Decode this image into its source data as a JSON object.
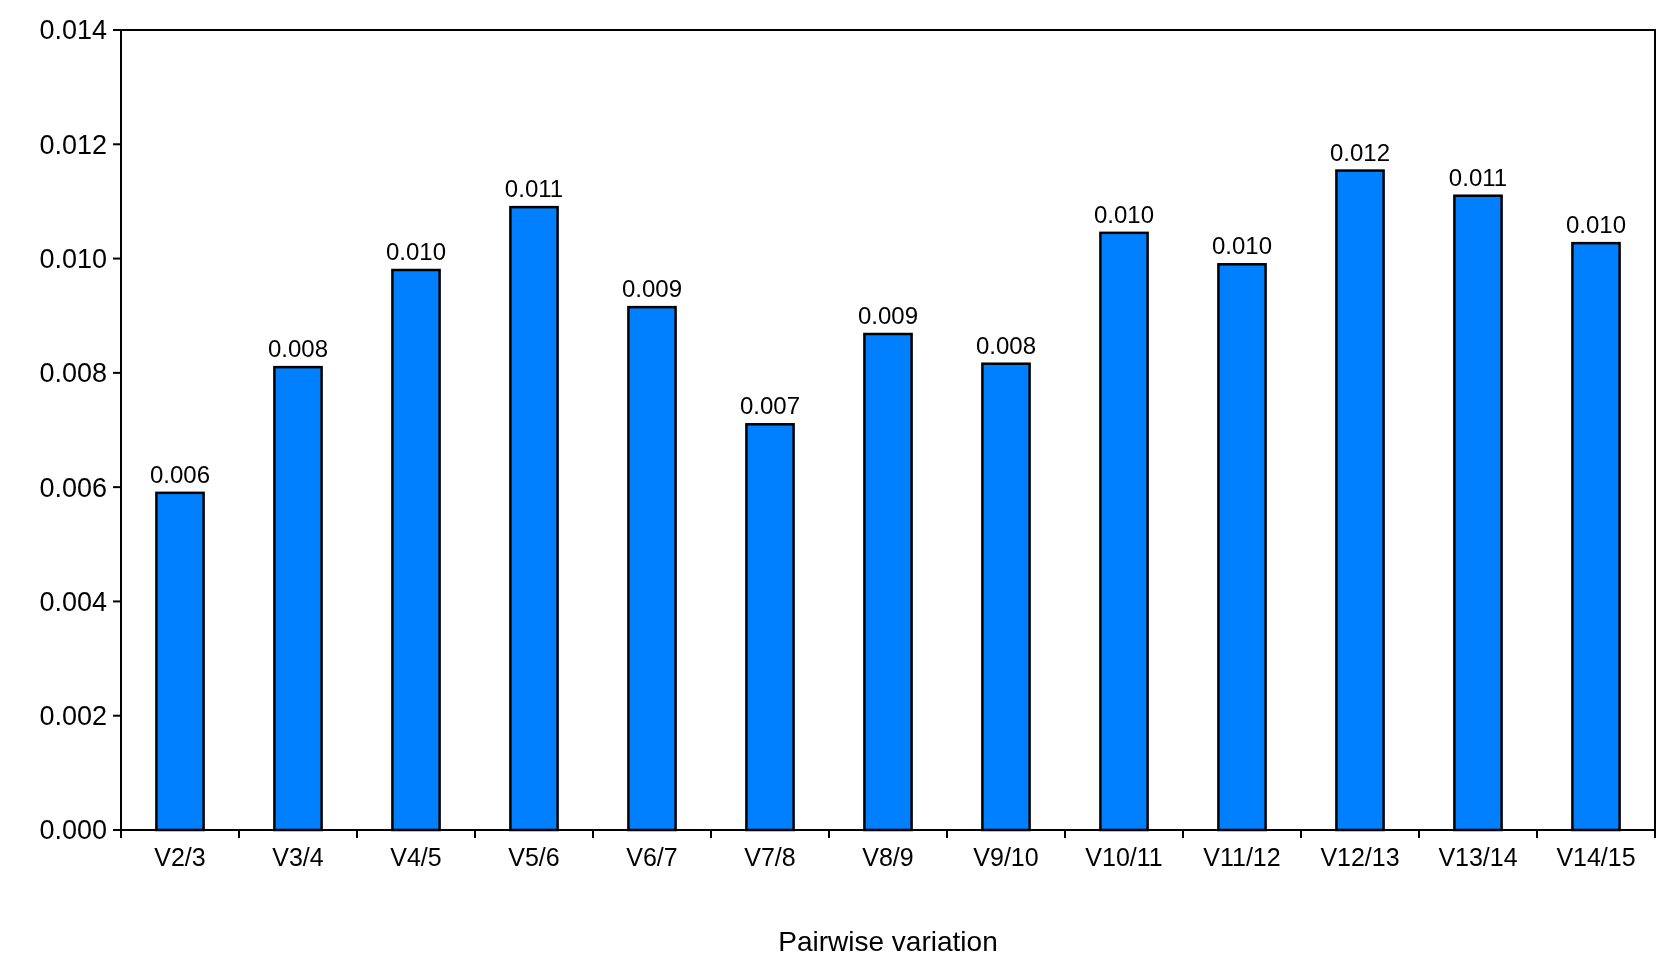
{
  "chart_data": {
    "type": "bar",
    "xlabel": "Pairwise variation",
    "categories": [
      "V2/3",
      "V3/4",
      "V4/5",
      "V5/6",
      "V6/7",
      "V7/8",
      "V8/9",
      "V9/10",
      "V10/11",
      "V11/12",
      "V12/13",
      "V13/14",
      "V14/15"
    ],
    "values": [
      0.0059,
      0.0081,
      0.0098,
      0.0109,
      0.00915,
      0.0071,
      0.00868,
      0.00816,
      0.01045,
      0.0099,
      0.01154,
      0.0111,
      0.01027
    ],
    "value_labels": [
      "0.006",
      "0.008",
      "0.010",
      "0.011",
      "0.009",
      "0.007",
      "0.009",
      "0.008",
      "0.010",
      "0.010",
      "0.012",
      "0.011",
      "0.010"
    ],
    "color": "#0080ff",
    "ylim": [
      0,
      0.014
    ],
    "yticks": [
      {
        "value": 0,
        "label": "0.000"
      },
      {
        "value": 0.002,
        "label": "0.002"
      },
      {
        "value": 0.004,
        "label": "0.004"
      },
      {
        "value": 0.006,
        "label": "0.006"
      },
      {
        "value": 0.008,
        "label": "0.008"
      },
      {
        "value": 0.01,
        "label": "0.010"
      },
      {
        "value": 0.012,
        "label": "0.012"
      },
      {
        "value": 0.014,
        "label": "0.014"
      }
    ],
    "grid": false
  }
}
